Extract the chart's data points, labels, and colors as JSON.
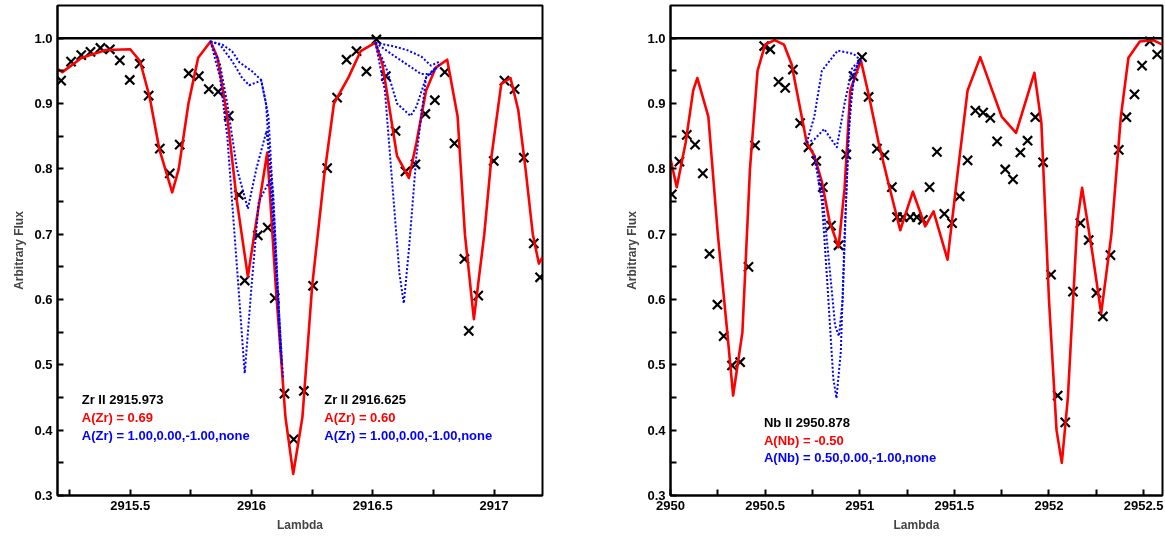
{
  "chart_data": [
    {
      "type": "line",
      "xlabel": "Lambda",
      "ylabel": "Arbitrary Flux",
      "xlim": [
        2915.2,
        2917.2
      ],
      "ylim": [
        0.3,
        1.05
      ],
      "xticks": [
        {
          "value": 2915.25,
          "label": null
        },
        2915.5,
        {
          "value": 2915.75,
          "label": null
        },
        2916,
        {
          "value": 2916.25,
          "label": null
        },
        2916.5,
        {
          "value": 2916.75,
          "label": null
        },
        2917
      ],
      "yticks": [
        {
          "value": 0.3,
          "label": "0.3"
        },
        {
          "value": 0.35,
          "label": null
        },
        {
          "value": 0.4,
          "label": "0.4"
        },
        {
          "value": 0.45,
          "label": null
        },
        {
          "value": 0.5,
          "label": "0.5"
        },
        {
          "value": 0.55,
          "label": null
        },
        {
          "value": 0.6,
          "label": "0.6"
        },
        {
          "value": 0.65,
          "label": null
        },
        {
          "value": 0.7,
          "label": "0.7"
        },
        {
          "value": 0.75,
          "label": null
        },
        {
          "value": 0.8,
          "label": "0.8"
        },
        {
          "value": 0.85,
          "label": null
        },
        {
          "value": 0.9,
          "label": "0.9"
        },
        {
          "value": 0.95,
          "label": null
        },
        {
          "value": 1.0,
          "label": "1.0"
        }
      ],
      "grid": false,
      "ref_lines": [
        {
          "axis": "y",
          "value": 1.0,
          "color": "#000000",
          "line_style": "solid"
        }
      ],
      "annotations": [
        "Zr II 2915.973",
        "A(Zr) = 0.69",
        "A(Zr) = 1.00,0.00,-1.00,none",
        "Zr II 2916.625",
        "A(Zr) = 0.60",
        "A(Zr) = 1.00,0.00,-1.00,none"
      ],
      "series": [
        {
          "type": "scatter",
          "marker": "cross",
          "color": "#000000",
          "x": [
            2915.215,
            2915.256,
            2915.298,
            2915.336,
            2915.377,
            2915.416,
            2915.457,
            2915.498,
            2915.539,
            2915.576,
            2915.622,
            2915.663,
            2915.704,
            2915.741,
            2915.783,
            2915.824,
            2915.863,
            2915.906,
            2915.948,
            2915.972,
            2916.026,
            2916.067,
            2916.096,
            2916.136,
            2916.174,
            2916.216,
            2916.254,
            2916.312,
            2916.353,
            2916.392,
            2916.433,
            2916.474,
            2916.515,
            2916.554,
            2916.594,
            2916.635,
            2916.676,
            2916.717,
            2916.756,
            2916.797,
            2916.837,
            2916.878,
            2916.896,
            2916.935,
            2916.999,
            2917.043,
            2917.085,
            2917.123,
            2917.164,
            2917.19
          ],
          "values": [
            0.935,
            0.964,
            0.974,
            0.979,
            0.985,
            0.983,
            0.966,
            0.936,
            0.961,
            0.912,
            0.831,
            0.793,
            0.837,
            0.946,
            0.942,
            0.922,
            0.918,
            0.881,
            0.76,
            0.629,
            0.698,
            0.71,
            0.602,
            0.456,
            0.386,
            0.46,
            0.621,
            0.801,
            0.909,
            0.967,
            0.98,
            0.949,
            0.998,
            0.942,
            0.858,
            0.796,
            0.807,
            0.884,
            0.905,
            0.948,
            0.839,
            0.662,
            0.552,
            0.606,
            0.812,
            0.935,
            0.922,
            0.817,
            0.686,
            0.634
          ]
        },
        {
          "type": "line",
          "line_style": "solid",
          "color": "#ff0000",
          "x": [
            2915.2,
            2915.22,
            2915.3,
            2915.4,
            2915.5,
            2915.54,
            2915.58,
            2915.62,
            2915.673,
            2915.7,
            2915.74,
            2915.78,
            2915.831,
            2915.86,
            2915.9,
            2915.94,
            2915.985,
            2916.02,
            2916.065,
            2916.1,
            2916.14,
            2916.172,
            2916.21,
            2916.25,
            2916.3,
            2916.34,
            2916.4,
            2916.45,
            2916.511,
            2916.54,
            2916.57,
            2916.6,
            2916.649,
            2916.68,
            2916.72,
            2916.76,
            2916.807,
            2916.85,
            2916.88,
            2916.917,
            2916.96,
            2916.99,
            2917.03,
            2917.068,
            2917.1,
            2917.13,
            2917.16,
            2917.185,
            2917.2
          ],
          "values": [
            0.953,
            0.948,
            0.97,
            0.982,
            0.983,
            0.965,
            0.91,
            0.83,
            0.764,
            0.8,
            0.9,
            0.97,
            0.995,
            0.97,
            0.88,
            0.75,
            0.635,
            0.72,
            0.825,
            0.62,
            0.42,
            0.333,
            0.42,
            0.62,
            0.79,
            0.9,
            0.94,
            0.98,
            0.993,
            0.96,
            0.89,
            0.82,
            0.786,
            0.84,
            0.92,
            0.955,
            0.967,
            0.88,
            0.7,
            0.57,
            0.7,
            0.82,
            0.93,
            0.939,
            0.89,
            0.8,
            0.7,
            0.655,
            0.665
          ]
        },
        {
          "type": "line",
          "line_style": "dotted",
          "color": "#0000ff",
          "x": [
            2915.831,
            2915.87,
            2915.9,
            2915.94,
            2915.972,
            2916.0,
            2916.03,
            2916.078,
            2916.1,
            2916.13,
            2916.2,
            2916.511,
            2916.55,
            2916.58,
            2916.61,
            2916.628,
            2916.65,
            2916.68,
            2916.72,
            2916.76
          ],
          "values": [
            0.995,
            0.94,
            0.85,
            0.65,
            0.487,
            0.62,
            0.75,
            0.784,
            0.66,
            0.48,
            null,
            0.993,
            0.92,
            0.78,
            0.64,
            0.594,
            0.68,
            0.82,
            0.94,
            0.955
          ]
        },
        {
          "type": "line",
          "line_style": "dotted",
          "color": "#0000ff",
          "x": [
            2915.831,
            2915.87,
            2915.9,
            2915.94,
            2915.985,
            2916.02,
            2916.062,
            2916.09,
            2916.12,
            2916.2,
            2916.511,
            2916.56,
            2916.6,
            2916.656,
            2916.68,
            2916.72,
            2916.76
          ],
          "values": [
            0.995,
            0.96,
            0.9,
            0.8,
            0.739,
            0.8,
            0.858,
            0.76,
            0.52,
            null,
            0.993,
            0.95,
            0.9,
            0.881,
            0.895,
            0.94,
            0.955
          ]
        },
        {
          "type": "line",
          "line_style": "dotted",
          "color": "#0000ff",
          "x": [
            2915.831,
            2915.87,
            2915.92,
            2915.96,
            2915.99,
            2916.04,
            2916.06,
            2916.09,
            2916.12,
            2916.2,
            2916.511,
            2916.58,
            2916.64,
            2916.7,
            2916.74,
            2916.78
          ],
          "values": [
            0.995,
            0.99,
            0.965,
            0.94,
            0.928,
            0.935,
            0.9,
            0.72,
            0.52,
            null,
            0.993,
            0.975,
            0.96,
            0.945,
            0.945,
            0.962
          ]
        },
        {
          "type": "line",
          "line_style": "dotted",
          "color": "#0000ff",
          "x": [
            2915.831,
            2915.88,
            2915.92,
            2915.95,
            2916.0,
            2916.04,
            2916.07,
            2916.1,
            2916.125,
            2916.2,
            2916.511,
            2916.58,
            2916.64,
            2916.7,
            2916.74,
            2916.78
          ],
          "values": [
            0.995,
            0.99,
            0.98,
            0.963,
            0.95,
            0.936,
            0.88,
            0.68,
            0.5,
            null,
            0.993,
            0.988,
            0.982,
            0.972,
            0.958,
            0.965
          ]
        }
      ]
    },
    {
      "type": "line",
      "xlabel": "Lambda",
      "ylabel": "Arbitrary Flux",
      "xlim": [
        2950,
        2952.6
      ],
      "ylim": [
        0.3,
        1.05
      ],
      "xticks": [
        2950,
        {
          "value": 2950.25,
          "label": null
        },
        2950.5,
        {
          "value": 2950.75,
          "label": null
        },
        2951,
        {
          "value": 2951.25,
          "label": null
        },
        2951.5,
        {
          "value": 2951.75,
          "label": null
        },
        2952,
        {
          "value": 2952.25,
          "label": null
        },
        2952.5
      ],
      "yticks": [
        {
          "value": 0.3,
          "label": "0.3"
        },
        {
          "value": 0.35,
          "label": null
        },
        {
          "value": 0.4,
          "label": "0.4"
        },
        {
          "value": 0.45,
          "label": null
        },
        {
          "value": 0.5,
          "label": "0.5"
        },
        {
          "value": 0.55,
          "label": null
        },
        {
          "value": 0.6,
          "label": "0.6"
        },
        {
          "value": 0.65,
          "label": null
        },
        {
          "value": 0.7,
          "label": "0.7"
        },
        {
          "value": 0.75,
          "label": null
        },
        {
          "value": 0.8,
          "label": "0.8"
        },
        {
          "value": 0.85,
          "label": null
        },
        {
          "value": 0.9,
          "label": "0.9"
        },
        {
          "value": 0.95,
          "label": null
        },
        {
          "value": 1.0,
          "label": "1.0"
        }
      ],
      "grid": false,
      "ref_lines": [
        {
          "axis": "y",
          "value": 1.0,
          "color": "#000000",
          "line_style": "solid"
        }
      ],
      "annotations": [
        "Nb II 2950.878",
        "A(Nb) = -0.50",
        "A(Nb) = 0.50,0.00,-1.00,none"
      ],
      "series": [
        {
          "type": "scatter",
          "marker": "cross",
          "color": "#000000",
          "x": [
            2950.007,
            2950.047,
            2950.086,
            2950.13,
            2950.171,
            2950.206,
            2950.248,
            2950.281,
            2950.325,
            2950.368,
            2950.412,
            2950.447,
            2950.495,
            2950.527,
            2950.571,
            2950.606,
            2950.647,
            2950.685,
            2950.729,
            2950.77,
            2950.805,
            2950.848,
            2950.888,
            2950.929,
            2950.967,
            2951.012,
            2951.047,
            2951.091,
            2951.13,
            2951.17,
            2951.197,
            2951.228,
            2951.267,
            2951.302,
            2951.334,
            2951.369,
            2951.408,
            2951.447,
            2951.488,
            2951.528,
            2951.57,
            2951.611,
            2951.652,
            2951.69,
            2951.726,
            2951.769,
            2951.81,
            2951.849,
            2951.887,
            2951.928,
            2951.969,
            2952.011,
            2952.046,
            2952.086,
            2952.127,
            2952.166,
            2952.21,
            2952.251,
            2952.285,
            2952.325,
            2952.369,
            2952.409,
            2952.452,
            2952.492,
            2952.533,
            2952.572
          ],
          "values": [
            0.761,
            0.811,
            0.852,
            0.837,
            0.793,
            0.67,
            0.592,
            0.544,
            0.499,
            0.504,
            0.65,
            0.836,
            0.988,
            0.983,
            0.933,
            0.924,
            0.952,
            0.87,
            0.833,
            0.812,
            0.772,
            0.713,
            0.683,
            0.822,
            0.942,
            0.971,
            0.91,
            0.831,
            0.821,
            0.772,
            0.726,
            0.726,
            0.726,
            0.726,
            0.722,
            0.772,
            0.826,
            0.731,
            0.717,
            0.758,
            0.813,
            0.889,
            0.886,
            0.878,
            0.842,
            0.799,
            0.784,
            0.825,
            0.843,
            0.879,
            0.81,
            0.638,
            0.453,
            0.412,
            0.612,
            0.717,
            0.691,
            0.61,
            0.574,
            0.668,
            0.829,
            0.879,
            0.914,
            0.958,
            0.995,
            0.975
          ]
        },
        {
          "type": "line",
          "line_style": "solid",
          "color": "#ff0000",
          "x": [
            2950.0,
            2950.033,
            2950.08,
            2950.12,
            2950.142,
            2950.2,
            2950.25,
            2950.3,
            2950.331,
            2950.38,
            2950.42,
            2950.46,
            2950.5,
            2950.55,
            2950.6,
            2950.64,
            2950.68,
            2950.72,
            2950.76,
            2950.8,
            2950.84,
            2950.888,
            2950.92,
            2950.95,
            2951.006,
            2951.05,
            2951.1,
            2951.15,
            2951.214,
            2951.281,
            2951.346,
            2951.39,
            2951.464,
            2951.52,
            2951.57,
            2951.637,
            2951.7,
            2951.75,
            2951.826,
            2951.923,
            2951.96,
            2952.0,
            2952.04,
            2952.068,
            2952.1,
            2952.15,
            2952.175,
            2952.23,
            2952.276,
            2952.33,
            2952.38,
            2952.42,
            2952.48,
            2952.55,
            2952.6
          ],
          "values": [
            0.815,
            0.772,
            0.84,
            0.92,
            0.939,
            0.88,
            0.7,
            0.55,
            0.453,
            0.55,
            0.8,
            0.95,
            0.99,
            0.997,
            0.99,
            0.96,
            0.9,
            0.84,
            0.82,
            0.78,
            0.72,
            0.68,
            0.77,
            0.92,
            0.966,
            0.91,
            0.84,
            0.78,
            0.706,
            0.765,
            0.712,
            0.735,
            0.661,
            0.8,
            0.92,
            0.971,
            0.92,
            0.88,
            0.855,
            0.947,
            0.87,
            0.6,
            0.4,
            0.35,
            0.45,
            0.72,
            0.771,
            0.67,
            0.579,
            0.7,
            0.88,
            0.97,
            0.995,
            0.997,
            0.99
          ]
        },
        {
          "type": "line",
          "line_style": "dotted",
          "color": "#0000ff",
          "x": [
            2950.76,
            2950.8,
            2950.83,
            2950.86,
            2950.877,
            2950.9,
            2950.92,
            2950.95,
            2950.98,
            2951.006
          ],
          "values": [
            0.82,
            0.75,
            0.62,
            0.48,
            0.449,
            0.52,
            0.7,
            0.9,
            0.955,
            0.966
          ]
        },
        {
          "type": "line",
          "line_style": "dotted",
          "color": "#0000ff",
          "x": [
            2950.76,
            2950.8,
            2950.84,
            2950.87,
            2950.89,
            2950.91,
            2950.94,
            2950.97,
            2951.006
          ],
          "values": [
            0.82,
            0.77,
            0.65,
            0.56,
            0.544,
            0.6,
            0.85,
            0.95,
            0.966
          ]
        },
        {
          "type": "line",
          "line_style": "dotted",
          "color": "#0000ff",
          "x": [
            2950.72,
            2950.76,
            2950.812,
            2950.85,
            2950.879,
            2950.92,
            2950.96,
            2951.006
          ],
          "values": [
            0.84,
            0.845,
            0.861,
            0.845,
            0.833,
            0.9,
            0.955,
            0.966
          ]
        },
        {
          "type": "line",
          "line_style": "dotted",
          "color": "#0000ff",
          "x": [
            2950.72,
            2950.76,
            2950.8,
            2950.883,
            2950.967,
            2951.006
          ],
          "values": [
            0.84,
            0.88,
            0.95,
            0.981,
            0.976,
            0.966
          ]
        }
      ]
    }
  ]
}
